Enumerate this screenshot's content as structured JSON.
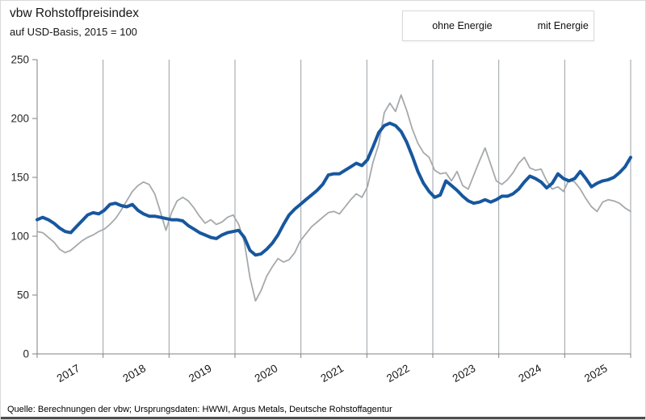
{
  "header": {
    "title": "vbw Rohstoffpreisindex",
    "subtitle": "auf USD-Basis, 2015 = 100"
  },
  "footer": {
    "source": "Quelle: Berechnungen der vbw; Ursprungsdaten: HWWI, Argus Metals, Deutsche Rohstoffagentur"
  },
  "chart_data": {
    "type": "line",
    "title": "vbw Rohstoffpreisindex",
    "subtitle": "auf USD-Basis, 2015 = 100",
    "frequency": "monthly",
    "x_start": "2017-01",
    "x_end": "2025-11",
    "x_axis": {
      "years": [
        "2017",
        "2018",
        "2019",
        "2020",
        "2021",
        "2022",
        "2023",
        "2024",
        "2025"
      ]
    },
    "y_axis": {
      "min": 0,
      "max": 250,
      "ticks": [
        0,
        50,
        100,
        150,
        200,
        250
      ]
    },
    "grid": "vertical-year-lines",
    "legend_position": "top-right",
    "style": {
      "gridline_color": "#9aa0a4",
      "axis_color": "#808080",
      "tick_label_color": "#262626",
      "accent_blue": "#17579e",
      "line_gray": "#a6a9ac"
    },
    "series": [
      {
        "id": "ohne-energie",
        "name": "ohne Energie",
        "color": "#17579e",
        "stroke_width": 4,
        "values": [
          114,
          116,
          114,
          111,
          107,
          104,
          103,
          108,
          113,
          118,
          120,
          119,
          122,
          127,
          128,
          126,
          125,
          127,
          122,
          119,
          117,
          117,
          116,
          115,
          114,
          114,
          113,
          109,
          106,
          103,
          101,
          99,
          98,
          101,
          103,
          104,
          105,
          99,
          88,
          84,
          85,
          89,
          94,
          101,
          110,
          118,
          123,
          127,
          131,
          135,
          139,
          144,
          152,
          153,
          153,
          156,
          159,
          162,
          160,
          165,
          176,
          188,
          194,
          196,
          194,
          189,
          180,
          168,
          155,
          145,
          138,
          133,
          135,
          147,
          143,
          139,
          134,
          130,
          128,
          129,
          131,
          129,
          131,
          134,
          134,
          136,
          140,
          146,
          151,
          149,
          146,
          141,
          145,
          153,
          149,
          147,
          149,
          155,
          149,
          142,
          145,
          147,
          148,
          150,
          154,
          159,
          167
        ]
      },
      {
        "id": "mit-energie",
        "name": "mit Energie",
        "color": "#a6a9ac",
        "stroke_width": 1.8,
        "values": [
          104,
          103,
          99,
          95,
          89,
          86,
          88,
          92,
          96,
          99,
          101,
          104,
          106,
          110,
          115,
          122,
          130,
          138,
          143,
          146,
          144,
          136,
          121,
          105,
          120,
          130,
          133,
          130,
          124,
          117,
          111,
          114,
          110,
          112,
          116,
          118,
          110,
          95,
          65,
          45,
          54,
          66,
          74,
          81,
          78,
          80,
          86,
          96,
          102,
          108,
          112,
          116,
          120,
          121,
          119,
          125,
          131,
          136,
          133,
          142,
          163,
          178,
          205,
          213,
          206,
          220,
          207,
          191,
          179,
          171,
          167,
          156,
          153,
          154,
          147,
          155,
          143,
          140,
          152,
          164,
          175,
          161,
          147,
          144,
          148,
          154,
          162,
          167,
          158,
          156,
          157,
          147,
          140,
          142,
          138,
          148,
          146,
          140,
          132,
          125,
          121,
          129,
          131,
          130,
          128,
          124,
          121
        ]
      }
    ]
  }
}
